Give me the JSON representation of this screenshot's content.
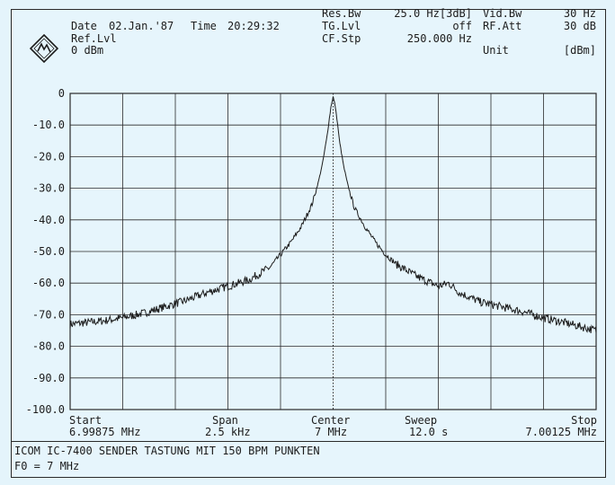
{
  "header": {
    "date_label": "Date",
    "date_value": "02.Jan.'87",
    "time_label": "Time",
    "time_value": "20:29:32",
    "ref_lvl_label": "Ref.Lvl",
    "ref_lvl_value": "0 dBm",
    "res_bw_label": "Res.Bw",
    "res_bw_value": "25.0 Hz[3dB]",
    "tg_lvl_label": "TG.Lvl",
    "tg_lvl_value": "off",
    "cf_stp_label": "CF.Stp",
    "cf_stp_value": "250.000 Hz",
    "vid_bw_label": "Vid.Bw",
    "vid_bw_value": "30 Hz",
    "rf_att_label": "RF.Att",
    "rf_att_value": "30 dB",
    "unit_label": "Unit",
    "unit_value": "[dBm]",
    "logo_icon": "rohde-schwarz-logo-icon"
  },
  "bottom_axis": {
    "start_label": "Start",
    "start_value": "6.99875 MHz",
    "span_label": "Span",
    "span_value": "2.5 kHz",
    "center_label": "Center",
    "center_value": "7 MHz",
    "sweep_label": "Sweep",
    "sweep_value": "12.0 s",
    "stop_label": "Stop",
    "stop_value": "7.00125 MHz"
  },
  "footer": {
    "line1": "ICOM IC-7400 SENDER TASTUNG MIT 150 BPM PUNKTEN",
    "line2": "F0 = 7 MHz"
  },
  "colors": {
    "background": "#e4f4fb",
    "trace": "#1c1c1c",
    "grid": "#2a2a2a"
  },
  "chart_data": {
    "type": "line",
    "title": "",
    "xlabel": "",
    "ylabel": "",
    "xlim": [
      -1.25,
      1.25
    ],
    "ylim": [
      -100,
      0
    ],
    "x_unit": "kHz offset from center (7 MHz)",
    "y_ticks": [
      "0",
      "-10.0",
      "-20.0",
      "-30.0",
      "-40.0",
      "-50.0",
      "-60.0",
      "-70.0",
      "-80.0",
      "-90.0",
      "-100.0"
    ],
    "grid": true,
    "center_marker": "dotted vertical line at center",
    "series": [
      {
        "name": "",
        "x": [
          -1.25,
          -1.1,
          -1.0,
          -0.9,
          -0.8,
          -0.7,
          -0.6,
          -0.5,
          -0.4,
          -0.3,
          -0.2,
          -0.15,
          -0.1,
          -0.07,
          -0.05,
          -0.03,
          -0.02,
          -0.01,
          0,
          0.01,
          0.02,
          0.03,
          0.05,
          0.07,
          0.1,
          0.15,
          0.2,
          0.25,
          0.3,
          0.4,
          0.5,
          0.55,
          0.6,
          0.7,
          0.8,
          0.9,
          1.0,
          1.1,
          1.25
        ],
        "y": [
          -73,
          -72,
          -71,
          -69.5,
          -67.5,
          -65.5,
          -63,
          -61,
          -59,
          -55,
          -47,
          -42,
          -35,
          -28,
          -22,
          -14,
          -9,
          -4,
          -1,
          -4,
          -9,
          -15,
          -23,
          -29,
          -36,
          -42,
          -47,
          -51,
          -54,
          -58,
          -61,
          -60,
          -63,
          -66,
          -67.5,
          -69,
          -71,
          -72.5,
          -75
        ]
      }
    ]
  }
}
